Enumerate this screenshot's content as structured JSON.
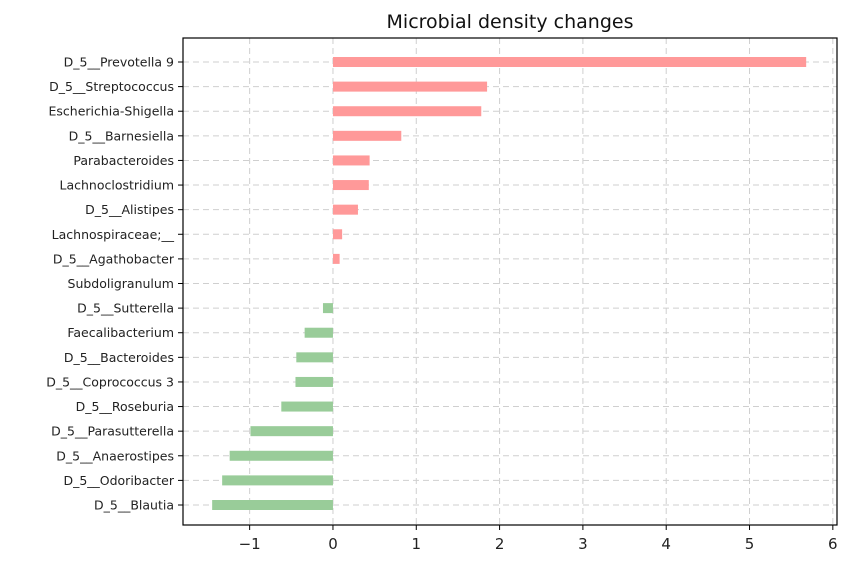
{
  "chart_data": {
    "type": "bar",
    "orientation": "horizontal",
    "title": "Microbial density changes",
    "xlabel": "",
    "ylabel": "",
    "xlim": [
      -1.8,
      6.05
    ],
    "x_ticks": [
      -1,
      0,
      1,
      2,
      3,
      4,
      5,
      6
    ],
    "x_tick_labels": [
      "−1",
      "0",
      "1",
      "2",
      "3",
      "4",
      "5",
      "6"
    ],
    "grid": true,
    "categories": [
      "D_5__Prevotella 9",
      "D_5__Streptococcus",
      "Escherichia-Shigella",
      "D_5__Barnesiella",
      "Parabacteroides",
      "Lachnoclostridium",
      "D_5__Alistipes",
      "Lachnospiraceae;__",
      "D_5__Agathobacter",
      "Subdoligranulum",
      "D_5__Sutterella",
      "Faecalibacterium",
      "D_5__Bacteroides",
      "D_5__Coprococcus 3",
      "D_5__Roseburia",
      "D_5__Parasutterella",
      "D_5__Anaerostipes",
      "D_5__Odoribacter",
      "D_5__Blautia"
    ],
    "values": [
      5.68,
      1.85,
      1.78,
      0.82,
      0.44,
      0.43,
      0.3,
      0.11,
      0.08,
      0.0,
      -0.12,
      -0.34,
      -0.44,
      -0.45,
      -0.62,
      -0.99,
      -1.24,
      -1.33,
      -1.45
    ],
    "colors": {
      "positive": "#ff9999",
      "negative": "#99cc99"
    }
  }
}
